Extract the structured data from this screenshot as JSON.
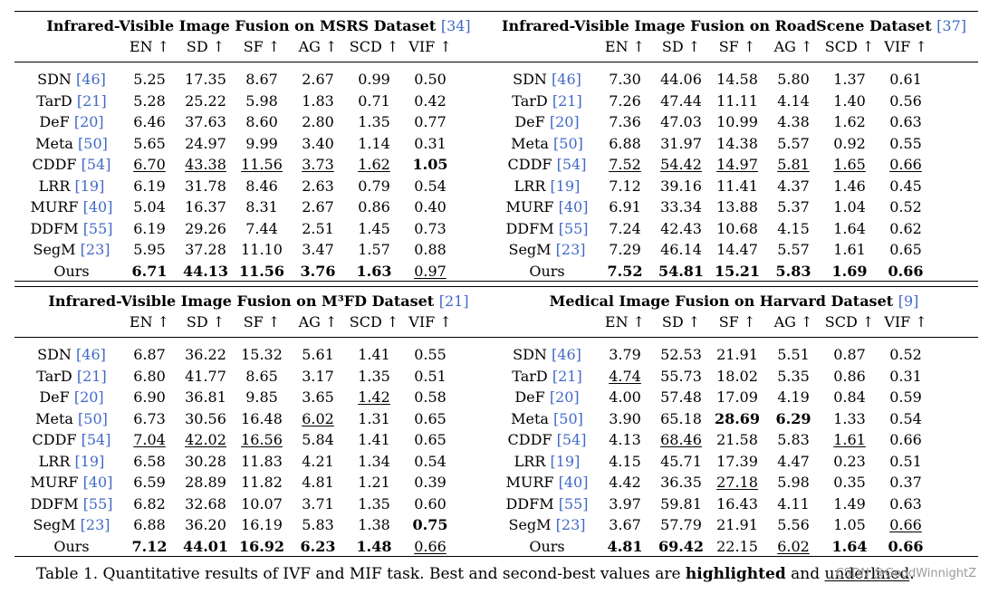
{
  "metrics": [
    "EN ↑",
    "SD ↑",
    "SF ↑",
    "AG ↑",
    "SCD ↑",
    "VIF ↑"
  ],
  "panels": [
    {
      "title": "Infrared-Visible Image Fusion on MSRS Dataset",
      "cite": "[34]",
      "rows": [
        {
          "name": "SDN",
          "cite": "[46]",
          "values": [
            "5.25",
            "17.35",
            "8.67",
            "2.67",
            "0.99",
            "0.50"
          ]
        },
        {
          "name": "TarD",
          "cite": "[21]",
          "values": [
            "5.28",
            "25.22",
            "5.98",
            "1.83",
            "0.71",
            "0.42"
          ]
        },
        {
          "name": "DeF",
          "cite": "[20]",
          "values": [
            "6.46",
            "37.63",
            "8.60",
            "2.80",
            "1.35",
            "0.77"
          ]
        },
        {
          "name": "Meta",
          "cite": "[50]",
          "values": [
            "5.65",
            "24.97",
            "9.99",
            "3.40",
            "1.14",
            "0.31"
          ]
        },
        {
          "name": "CDDF",
          "cite": "[54]",
          "values": [
            "6.70",
            "43.38",
            "11.56",
            "3.73",
            "1.62",
            "1.05"
          ]
        },
        {
          "name": "LRR",
          "cite": "[19]",
          "values": [
            "6.19",
            "31.78",
            "8.46",
            "2.63",
            "0.79",
            "0.54"
          ]
        },
        {
          "name": "MURF",
          "cite": "[40]",
          "values": [
            "5.04",
            "16.37",
            "8.31",
            "2.67",
            "0.86",
            "0.40"
          ]
        },
        {
          "name": "DDFM",
          "cite": "[55]",
          "values": [
            "6.19",
            "29.26",
            "7.44",
            "2.51",
            "1.45",
            "0.73"
          ]
        },
        {
          "name": "SegM",
          "cite": "[23]",
          "values": [
            "5.95",
            "37.28",
            "11.10",
            "3.47",
            "1.57",
            "0.88"
          ]
        },
        {
          "name": "Ours",
          "cite": "",
          "values": [
            "6.71",
            "44.13",
            "11.56",
            "3.76",
            "1.63",
            "0.97"
          ]
        }
      ]
    },
    {
      "title": "Infrared-Visible Image Fusion on RoadScene Dataset",
      "cite": "[37]",
      "rows": [
        {
          "name": "SDN",
          "cite": "[46]",
          "values": [
            "7.30",
            "44.06",
            "14.58",
            "5.80",
            "1.37",
            "0.61"
          ]
        },
        {
          "name": "TarD",
          "cite": "[21]",
          "values": [
            "7.26",
            "47.44",
            "11.11",
            "4.14",
            "1.40",
            "0.56"
          ]
        },
        {
          "name": "DeF",
          "cite": "[20]",
          "values": [
            "7.36",
            "47.03",
            "10.99",
            "4.38",
            "1.62",
            "0.63"
          ]
        },
        {
          "name": "Meta",
          "cite": "[50]",
          "values": [
            "6.88",
            "31.97",
            "14.38",
            "5.57",
            "0.92",
            "0.55"
          ]
        },
        {
          "name": "CDDF",
          "cite": "[54]",
          "values": [
            "7.52",
            "54.42",
            "14.97",
            "5.81",
            "1.65",
            "0.66"
          ]
        },
        {
          "name": "LRR",
          "cite": "[19]",
          "values": [
            "7.12",
            "39.16",
            "11.41",
            "4.37",
            "1.46",
            "0.45"
          ]
        },
        {
          "name": "MURF",
          "cite": "[40]",
          "values": [
            "6.91",
            "33.34",
            "13.88",
            "5.37",
            "1.04",
            "0.52"
          ]
        },
        {
          "name": "DDFM",
          "cite": "[55]",
          "values": [
            "7.24",
            "42.43",
            "10.68",
            "4.15",
            "1.64",
            "0.62"
          ]
        },
        {
          "name": "SegM",
          "cite": "[23]",
          "values": [
            "7.29",
            "46.14",
            "14.47",
            "5.57",
            "1.61",
            "0.65"
          ]
        },
        {
          "name": "Ours",
          "cite": "",
          "values": [
            "7.52",
            "54.81",
            "15.21",
            "5.83",
            "1.69",
            "0.66"
          ]
        }
      ]
    },
    {
      "title": "Infrared-Visible Image Fusion on M³FD Dataset",
      "cite": "[21]",
      "rows": [
        {
          "name": "SDN",
          "cite": "[46]",
          "values": [
            "6.87",
            "36.22",
            "15.32",
            "5.61",
            "1.41",
            "0.55"
          ]
        },
        {
          "name": "TarD",
          "cite": "[21]",
          "values": [
            "6.80",
            "41.77",
            "8.65",
            "3.17",
            "1.35",
            "0.51"
          ]
        },
        {
          "name": "DeF",
          "cite": "[20]",
          "values": [
            "6.90",
            "36.81",
            "9.85",
            "3.65",
            "1.42",
            "0.58"
          ]
        },
        {
          "name": "Meta",
          "cite": "[50]",
          "values": [
            "6.73",
            "30.56",
            "16.48",
            "6.02",
            "1.31",
            "0.65"
          ]
        },
        {
          "name": "CDDF",
          "cite": "[54]",
          "values": [
            "7.04",
            "42.02",
            "16.56",
            "5.84",
            "1.41",
            "0.65"
          ]
        },
        {
          "name": "LRR",
          "cite": "[19]",
          "values": [
            "6.58",
            "30.28",
            "11.83",
            "4.21",
            "1.34",
            "0.54"
          ]
        },
        {
          "name": "MURF",
          "cite": "[40]",
          "values": [
            "6.59",
            "28.89",
            "11.82",
            "4.81",
            "1.21",
            "0.39"
          ]
        },
        {
          "name": "DDFM",
          "cite": "[55]",
          "values": [
            "6.82",
            "32.68",
            "10.07",
            "3.71",
            "1.35",
            "0.60"
          ]
        },
        {
          "name": "SegM",
          "cite": "[23]",
          "values": [
            "6.88",
            "36.20",
            "16.19",
            "5.83",
            "1.38",
            "0.75"
          ]
        },
        {
          "name": "Ours",
          "cite": "",
          "values": [
            "7.12",
            "44.01",
            "16.92",
            "6.23",
            "1.48",
            "0.66"
          ]
        }
      ]
    },
    {
      "title": "Medical Image Fusion on Harvard Dataset",
      "cite": "[9]",
      "rows": [
        {
          "name": "SDN",
          "cite": "[46]",
          "values": [
            "3.79",
            "52.53",
            "21.91",
            "5.51",
            "0.87",
            "0.52"
          ]
        },
        {
          "name": "TarD",
          "cite": "[21]",
          "values": [
            "4.74",
            "55.73",
            "18.02",
            "5.35",
            "0.86",
            "0.31"
          ]
        },
        {
          "name": "DeF",
          "cite": "[20]",
          "values": [
            "4.00",
            "57.48",
            "17.09",
            "4.19",
            "0.84",
            "0.59"
          ]
        },
        {
          "name": "Meta",
          "cite": "[50]",
          "values": [
            "3.90",
            "65.18",
            "28.69",
            "6.29",
            "1.33",
            "0.54"
          ]
        },
        {
          "name": "CDDF",
          "cite": "[54]",
          "values": [
            "4.13",
            "68.46",
            "21.58",
            "5.83",
            "1.61",
            "0.66"
          ]
        },
        {
          "name": "LRR",
          "cite": "[19]",
          "values": [
            "4.15",
            "45.71",
            "17.39",
            "4.47",
            "0.23",
            "0.51"
          ]
        },
        {
          "name": "MURF",
          "cite": "[40]",
          "values": [
            "4.42",
            "36.35",
            "27.18",
            "5.98",
            "0.35",
            "0.37"
          ]
        },
        {
          "name": "DDFM",
          "cite": "[55]",
          "values": [
            "3.97",
            "59.81",
            "16.43",
            "4.11",
            "1.49",
            "0.63"
          ]
        },
        {
          "name": "SegM",
          "cite": "[23]",
          "values": [
            "3.67",
            "57.79",
            "21.91",
            "5.56",
            "1.05",
            "0.66"
          ]
        },
        {
          "name": "Ours",
          "cite": "",
          "values": [
            "4.81",
            "69.42",
            "22.15",
            "6.02",
            "1.64",
            "0.66"
          ]
        }
      ]
    }
  ],
  "caption": {
    "prefix": "Table 1. Quantitative results of IVF and MIF task. Best and second-best values are ",
    "bold": "highlighted",
    "mid": " and ",
    "underline": "underlined",
    "suffix": "."
  },
  "watermark": "CSDN @GoodWinnightZ"
}
